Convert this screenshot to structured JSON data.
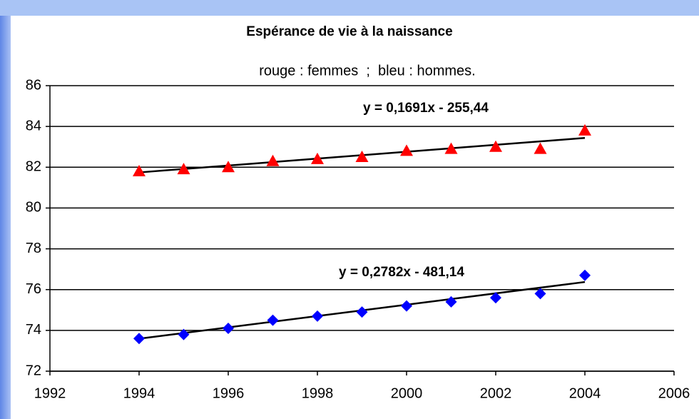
{
  "chart_data": {
    "type": "scatter",
    "title": "Espérance de vie à la naissance",
    "subtitle": "rouge : femmes  ;  bleu : hommes.",
    "x": [
      1994,
      1995,
      1996,
      1997,
      1998,
      1999,
      2000,
      2001,
      2002,
      2003,
      2004
    ],
    "series": [
      {
        "color": "#ff0000",
        "marker": "triangle",
        "values": [
          81.8,
          81.9,
          82.0,
          82.3,
          82.4,
          82.5,
          82.8,
          82.9,
          83.0,
          82.9,
          83.8
        ],
        "trendline": {
          "label": "y = 0,1691x - 255,44",
          "slope": 0.1691,
          "intercept": -255.44
        }
      },
      {
        "color": "#0000ff",
        "marker": "diamond",
        "values": [
          73.6,
          73.8,
          74.1,
          74.5,
          74.7,
          74.9,
          75.2,
          75.4,
          75.6,
          75.8,
          76.7
        ],
        "trendline": {
          "label": "y = 0,2782x - 481,14",
          "slope": 0.2782,
          "intercept": -481.14
        }
      }
    ],
    "xlim": [
      1992,
      2006
    ],
    "xticks": [
      1992,
      1994,
      1996,
      1998,
      2000,
      2002,
      2004,
      2006
    ],
    "ylim": [
      72,
      86
    ],
    "yticks": [
      72,
      74,
      76,
      78,
      80,
      82,
      84,
      86
    ],
    "grid": true
  }
}
